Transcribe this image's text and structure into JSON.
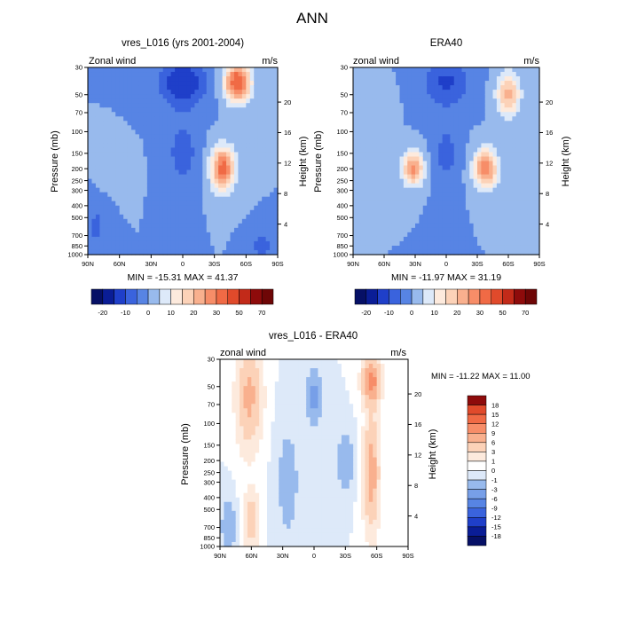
{
  "page_title": "ANN",
  "colors": {
    "positive": [
      "#fdeadd",
      "#fcd2b8",
      "#f9b08e",
      "#f78d68",
      "#f06a45",
      "#e04a2b",
      "#c22a19",
      "#8e0b0b"
    ],
    "negative": [
      "#dde9f9",
      "#bbd3f3",
      "#98baed",
      "#779fe8",
      "#5784e4",
      "#3a63dd",
      "#1f3fc9",
      "#0a1d96",
      "#061066"
    ]
  },
  "chart_data": [
    {
      "type": "heatmap",
      "title": "vres_L016 (yrs 2001-2004)",
      "left_label": "Zonal wind",
      "right_label": "m/s",
      "ylabel": "Pressure (mb)",
      "y2label": "Height (km)",
      "x_ticks": [
        "90N",
        "60N",
        "30N",
        "0",
        "30S",
        "60S",
        "90S"
      ],
      "y_ticks": [
        "30",
        "50",
        "70",
        "100",
        "150",
        "200",
        "250",
        "300",
        "400",
        "500",
        "700",
        "850",
        "1000"
      ],
      "height_ticks": [
        "4",
        "8",
        "12",
        "16",
        "20"
      ],
      "stats": "MIN = -15.31  MAX =  41.37",
      "colorbar_labels": [
        "-20",
        "-10",
        "0",
        "10",
        "20",
        "30",
        "50",
        "70"
      ],
      "field": {
        "features": [
          {
            "lat": 66,
            "p": 200,
            "value": 5,
            "lat_width": 13,
            "vert_width": 0.35
          },
          {
            "lat": -38,
            "p": 200,
            "value": 33,
            "lat_width": 11,
            "vert_width": 0.4
          },
          {
            "lat": -52,
            "p": 40,
            "value": 38,
            "lat_width": 12,
            "vert_width": 0.35
          },
          {
            "lat": 0,
            "p": 40,
            "value": -15,
            "lat_width": 22,
            "vert_width": 0.45
          },
          {
            "lat": 0,
            "p": 150,
            "value": -8,
            "lat_width": 14,
            "vert_width": 0.6
          },
          {
            "lat": -75,
            "p": 850,
            "value": -8,
            "lat_width": 10,
            "vert_width": 0.25
          },
          {
            "lat": 82,
            "p": 600,
            "value": -6,
            "lat_width": 10,
            "vert_width": 0.5
          }
        ]
      },
      "min": -15.31,
      "max": 41.37
    },
    {
      "type": "heatmap",
      "title": "ERA40",
      "left_label": "zonal wind",
      "right_label": "m/s",
      "ylabel": "Pressure (mb)",
      "y2label": "Height (km)",
      "x_ticks": [
        "90N",
        "60N",
        "30N",
        "0",
        "30S",
        "60S",
        "90S"
      ],
      "y_ticks": [
        "30",
        "50",
        "70",
        "100",
        "150",
        "200",
        "250",
        "300",
        "400",
        "500",
        "700",
        "850",
        "1000"
      ],
      "height_ticks": [
        "4",
        "8",
        "12",
        "16",
        "20"
      ],
      "stats": "MIN = -11.97  MAX =  31.19",
      "colorbar_labels": [
        "-20",
        "-10",
        "0",
        "10",
        "20",
        "30",
        "50",
        "70"
      ],
      "field": {
        "features": [
          {
            "lat": 32,
            "p": 200,
            "value": 28,
            "lat_width": 10,
            "vert_width": 0.3
          },
          {
            "lat": -38,
            "p": 200,
            "value": 30,
            "lat_width": 11,
            "vert_width": 0.35
          },
          {
            "lat": -60,
            "p": 50,
            "value": 22,
            "lat_width": 11,
            "vert_width": 0.4
          },
          {
            "lat": 0,
            "p": 40,
            "value": -11,
            "lat_width": 22,
            "vert_width": 0.45
          },
          {
            "lat": 0,
            "p": 150,
            "value": -7,
            "lat_width": 12,
            "vert_width": 0.6
          },
          {
            "lat": 70,
            "p": 60,
            "value": 3,
            "lat_width": 15,
            "vert_width": 0.4
          }
        ]
      },
      "min": -11.97,
      "max": 31.19
    },
    {
      "type": "heatmap",
      "title": "vres_L016 - ERA40",
      "left_label": "zonal wind",
      "right_label": "m/s",
      "ylabel": "Pressure (mb)",
      "y2label": "Height (km)",
      "x_ticks": [
        "90N",
        "60N",
        "30N",
        "0",
        "30S",
        "60S",
        "90S"
      ],
      "y_ticks": [
        "30",
        "50",
        "70",
        "100",
        "150",
        "200",
        "250",
        "300",
        "400",
        "500",
        "700",
        "850",
        "1000"
      ],
      "height_ticks": [
        "4",
        "8",
        "12",
        "16",
        "20"
      ],
      "stats": "MIN = -11.22  MAX =  11.00",
      "colorbar_labels": [
        "18",
        "15",
        "12",
        "9",
        "6",
        "3",
        "1",
        "0",
        "-1",
        "-3",
        "-6",
        "-9",
        "-12",
        "-15",
        "-18"
      ],
      "field": {
        "features": [
          {
            "lat": 62,
            "p": 60,
            "value": 7,
            "lat_width": 11,
            "vert_width": 0.9
          },
          {
            "lat": 60,
            "p": 600,
            "value": 5,
            "lat_width": 7,
            "vert_width": 0.5
          },
          {
            "lat": -55,
            "p": 45,
            "value": 11,
            "lat_width": 8,
            "vert_width": 0.4
          },
          {
            "lat": -55,
            "p": 250,
            "value": 8,
            "lat_width": 7,
            "vert_width": 1
          },
          {
            "lat": 0,
            "p": 60,
            "value": -4,
            "lat_width": 6,
            "vert_width": 0.5
          },
          {
            "lat": -30,
            "p": 200,
            "value": -3,
            "lat_width": 7,
            "vert_width": 0.5
          },
          {
            "lat": 25,
            "p": 300,
            "value": -2,
            "lat_width": 10,
            "vert_width": 1
          },
          {
            "lat": 82,
            "p": 700,
            "value": -3,
            "lat_width": 6,
            "vert_width": 0.5
          }
        ]
      },
      "min": -11.22,
      "max": 11.0
    }
  ]
}
